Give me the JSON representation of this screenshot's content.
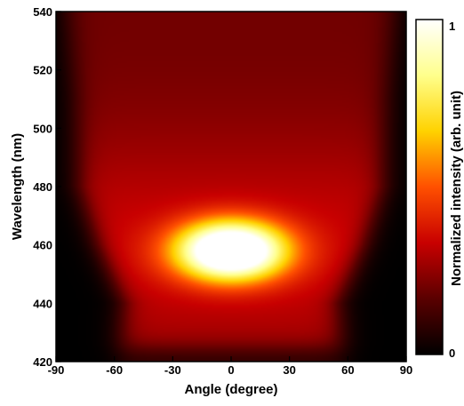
{
  "chart_data": {
    "type": "heatmap",
    "title": "",
    "xlabel": "Angle (degree)",
    "ylabel": "Wavelength (nm)",
    "xlim": [
      -90,
      90
    ],
    "ylim": [
      420,
      540
    ],
    "xticks": [
      -90,
      -60,
      -30,
      0,
      30,
      60,
      90
    ],
    "yticks": [
      420,
      440,
      460,
      480,
      500,
      520,
      540
    ],
    "x_tick_labels": [
      "-90",
      "-60",
      "-30",
      "0",
      "30",
      "60",
      "90"
    ],
    "y_tick_labels": [
      "420",
      "440",
      "460",
      "480",
      "500",
      "520",
      "540"
    ],
    "colormap": "black-red-yellow-white",
    "colormap_stops": [
      "#000000",
      "#5a0000",
      "#c80000",
      "#ff5000",
      "#ffd200",
      "#ffff8c",
      "#ffffff"
    ],
    "colorbar": {
      "label": "Normalized intensity (arb. unit)",
      "min": 0,
      "max": 1,
      "min_label": "0",
      "max_label": "1"
    },
    "features": {
      "peak_center": {
        "angle": 0,
        "wavelength": 458,
        "intensity": 1.0
      },
      "peak_width_angle": 28,
      "peak_width_wavelength": 10,
      "background_band_half_width_deg": [
        58,
        55,
        68,
        78,
        80,
        84
      ],
      "background_band_wavelengths": [
        420,
        440,
        460,
        480,
        510,
        540
      ],
      "background_band_intensity_near_peak": 0.34,
      "background_band_intensity_top": 0.2
    }
  }
}
